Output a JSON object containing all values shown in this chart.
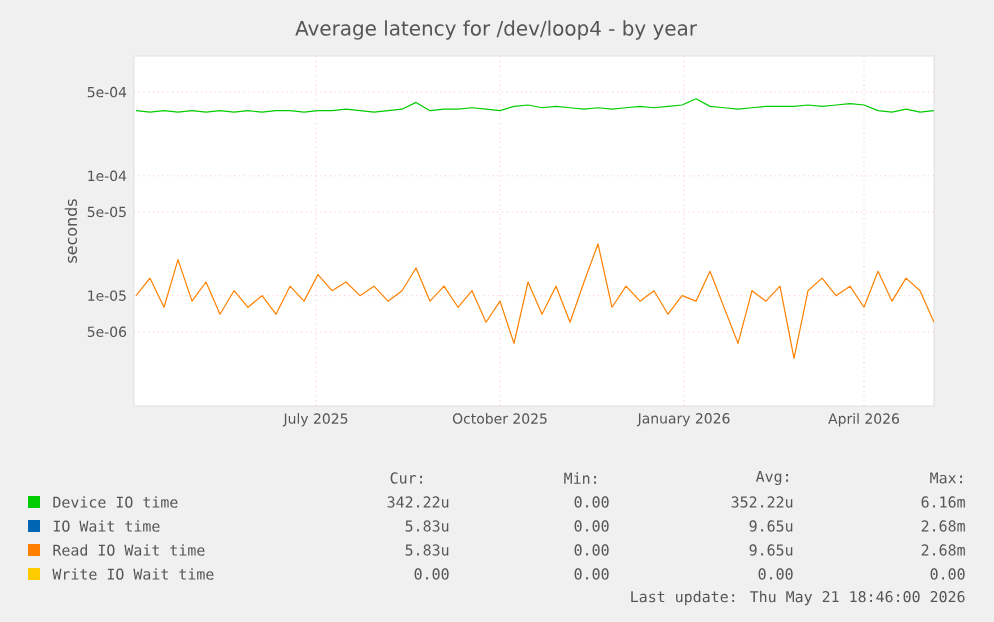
{
  "chart_data": {
    "type": "line",
    "title": "Average latency for /dev/loop4 - by year",
    "ylabel": "seconds",
    "log": "y",
    "grid": true,
    "legend": "bottom",
    "xlim": [
      "2025-04-16",
      "2026-05-21"
    ],
    "xticks": [
      {
        "value": "2025-07-16",
        "label": "July 2025"
      },
      {
        "value": "2025-10-16",
        "label": "October 2025"
      },
      {
        "value": "2026-01-16",
        "label": "January 2026"
      },
      {
        "value": "2026-04-16",
        "label": "April 2026"
      }
    ],
    "ylim": [
      1.2e-06,
      0.001
    ],
    "yticks": [
      {
        "value": 0.0005,
        "label": "5e-04"
      },
      {
        "value": 0.0001,
        "label": "1e-04"
      },
      {
        "value": 5e-05,
        "label": "5e-05"
      },
      {
        "value": 1e-05,
        "label": "1e-05"
      },
      {
        "value": 5e-06,
        "label": "5e-06"
      }
    ],
    "x": [
      "2025-04-17",
      "2025-04-24",
      "2025-05-01",
      "2025-05-08",
      "2025-05-15",
      "2025-05-22",
      "2025-05-29",
      "2025-06-05",
      "2025-06-12",
      "2025-06-19",
      "2025-06-26",
      "2025-07-03",
      "2025-07-10",
      "2025-07-17",
      "2025-07-24",
      "2025-07-31",
      "2025-08-07",
      "2025-08-14",
      "2025-08-21",
      "2025-08-28",
      "2025-09-04",
      "2025-09-11",
      "2025-09-18",
      "2025-09-25",
      "2025-10-02",
      "2025-10-09",
      "2025-10-16",
      "2025-10-23",
      "2025-10-30",
      "2025-11-06",
      "2025-11-13",
      "2025-11-20",
      "2025-11-27",
      "2025-12-04",
      "2025-12-11",
      "2025-12-18",
      "2025-12-25",
      "2026-01-01",
      "2026-01-08",
      "2026-01-15",
      "2026-01-22",
      "2026-01-29",
      "2026-02-05",
      "2026-02-12",
      "2026-02-19",
      "2026-02-26",
      "2026-03-05",
      "2026-03-12",
      "2026-03-19",
      "2026-03-26",
      "2026-04-02",
      "2026-04-09",
      "2026-04-16",
      "2026-04-23",
      "2026-04-30",
      "2026-05-07",
      "2026-05-14",
      "2026-05-21"
    ],
    "series": [
      {
        "name": "Device IO time",
        "color": "#00cc00",
        "values": [
          0.00035,
          0.00034,
          0.00035,
          0.00034,
          0.00035,
          0.00034,
          0.00035,
          0.00034,
          0.00035,
          0.00034,
          0.00035,
          0.00035,
          0.00034,
          0.00035,
          0.00035,
          0.00036,
          0.00035,
          0.00034,
          0.00035,
          0.00036,
          0.00041,
          0.00035,
          0.00036,
          0.00036,
          0.00037,
          0.00036,
          0.00035,
          0.00038,
          0.00039,
          0.00037,
          0.00038,
          0.00037,
          0.00036,
          0.00037,
          0.00036,
          0.00037,
          0.00038,
          0.00037,
          0.00038,
          0.00039,
          0.00044,
          0.00038,
          0.00037,
          0.00036,
          0.00037,
          0.00038,
          0.00038,
          0.00038,
          0.00039,
          0.00038,
          0.00039,
          0.0004,
          0.00039,
          0.00035,
          0.00034,
          0.00036,
          0.00034,
          0.00035
        ]
      },
      {
        "name": "IO Wait time",
        "color": "#0066b3",
        "values": [
          null,
          null,
          null,
          null,
          null,
          null,
          null,
          null,
          null,
          null,
          null,
          null,
          null,
          null,
          null,
          null,
          null,
          null,
          null,
          null,
          null,
          null,
          null,
          null,
          null,
          null,
          null,
          null,
          null,
          null,
          null,
          null,
          null,
          null,
          null,
          null,
          null,
          null,
          null,
          null,
          null,
          null,
          null,
          null,
          null,
          null,
          null,
          null,
          null,
          null,
          null,
          null,
          null,
          null,
          null,
          null,
          null,
          null
        ]
      },
      {
        "name": "Read IO Wait time",
        "color": "#ff8000",
        "values": [
          1e-05,
          1.4e-05,
          8e-06,
          2e-05,
          9e-06,
          1.3e-05,
          7e-06,
          1.1e-05,
          8e-06,
          1e-05,
          7e-06,
          1.2e-05,
          9e-06,
          1.5e-05,
          1.1e-05,
          1.3e-05,
          1e-05,
          1.2e-05,
          9e-06,
          1.1e-05,
          1.7e-05,
          9e-06,
          1.2e-05,
          8e-06,
          1.1e-05,
          6e-06,
          9e-06,
          4e-06,
          1.3e-05,
          7e-06,
          1.2e-05,
          6e-06,
          1.3e-05,
          2.7e-05,
          8e-06,
          1.2e-05,
          9e-06,
          1.1e-05,
          7e-06,
          1e-05,
          9e-06,
          1.6e-05,
          8e-06,
          4e-06,
          1.1e-05,
          9e-06,
          1.2e-05,
          3e-06,
          1.1e-05,
          1.4e-05,
          1e-05,
          1.2e-05,
          8e-06,
          1.6e-05,
          9e-06,
          1.4e-05,
          1.1e-05,
          6e-06
        ]
      },
      {
        "name": "Write IO Wait time",
        "color": "#ffcc00",
        "values": [
          null,
          null,
          null,
          null,
          null,
          null,
          null,
          null,
          null,
          null,
          null,
          null,
          null,
          null,
          null,
          null,
          null,
          null,
          null,
          null,
          null,
          null,
          null,
          null,
          null,
          null,
          null,
          null,
          null,
          null,
          null,
          null,
          null,
          null,
          null,
          null,
          null,
          null,
          null,
          null,
          null,
          null,
          null,
          null,
          null,
          null,
          null,
          null,
          null,
          null,
          null,
          null,
          null,
          null,
          null,
          null,
          null,
          null
        ]
      }
    ],
    "annotations": [
      "Cur:",
      "Min:",
      "Avg:",
      "Max:",
      "342.22u",
      "0.00",
      "352.22u",
      "6.16m",
      "5.83u",
      "0.00",
      "9.65u",
      "2.68m",
      "5.83u",
      "0.00",
      "9.65u",
      "2.68m",
      "0.00",
      "0.00",
      "0.00",
      "0.00",
      "Last update: Thu May 21 18:46:00 2026"
    ]
  }
}
